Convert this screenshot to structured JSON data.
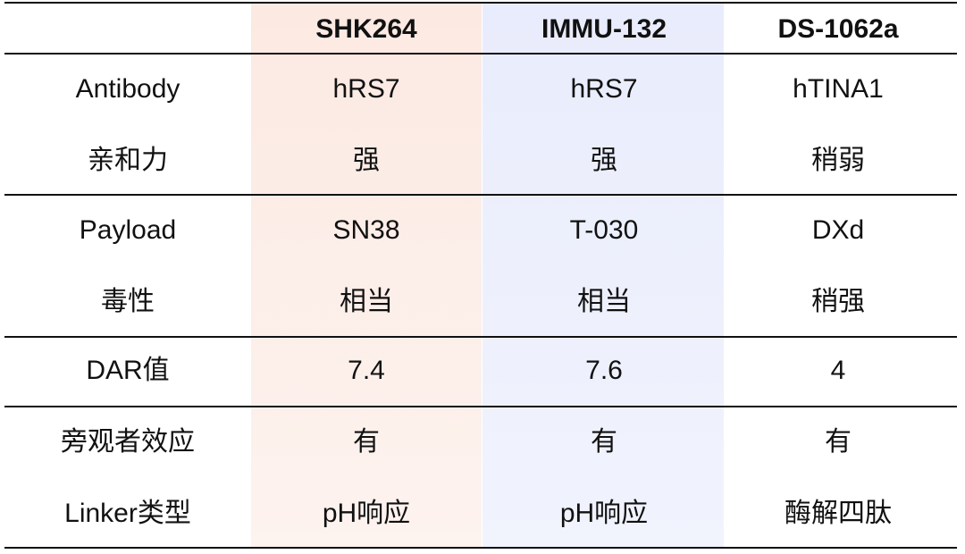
{
  "table": {
    "header": [
      "SHK264",
      "IMMU-132",
      "DS-1062a"
    ],
    "rows": [
      [
        "Antibody",
        "hRS7",
        "hRS7",
        "hTINA1"
      ],
      [
        "亲和力",
        "强",
        "强",
        "稍弱"
      ],
      [
        "Payload",
        "SN38",
        "T-030",
        "DXd"
      ],
      [
        "毒性",
        "相当",
        "相当",
        "稍强"
      ],
      [
        "DAR值",
        "7.4",
        "7.6",
        "4"
      ],
      [
        "旁观者效应",
        "有",
        "有",
        "有"
      ],
      [
        "Linker类型",
        "pH响应",
        "pH响应",
        "酶解四肽"
      ]
    ]
  }
}
